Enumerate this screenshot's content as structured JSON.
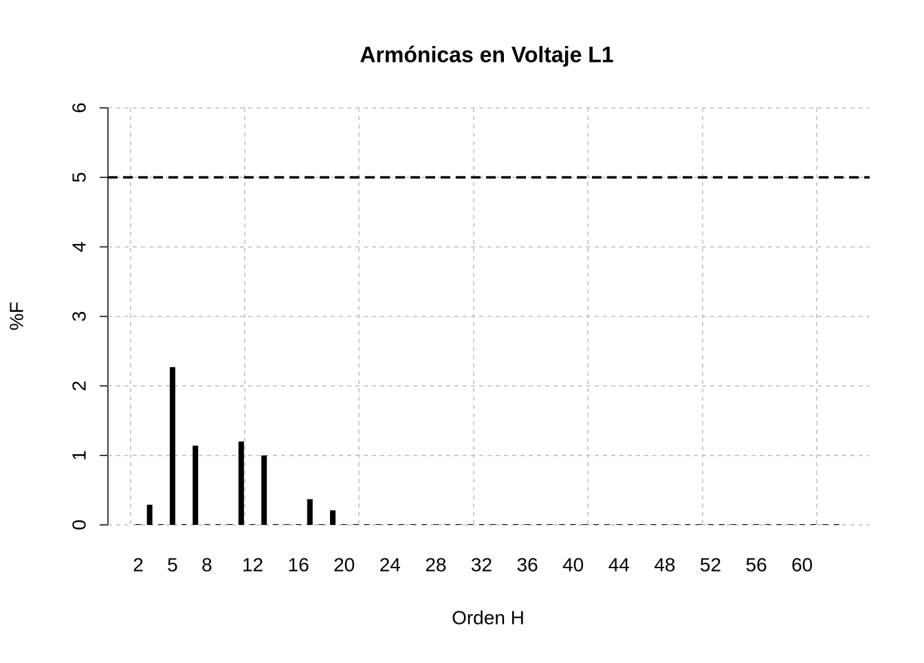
{
  "chart_data": {
    "type": "bar",
    "title": "Armónicas en Voltaje L1",
    "x_label": "Orden H",
    "y_label": "%F",
    "categories": [
      "2",
      null,
      null,
      "5",
      null,
      null,
      "8",
      null,
      null,
      null,
      "12",
      null,
      null,
      null,
      "16",
      null,
      null,
      null,
      "20",
      null,
      null,
      null,
      "24",
      null,
      null,
      null,
      "28",
      null,
      null,
      null,
      "32",
      null,
      null,
      null,
      "36",
      null,
      null,
      null,
      "40",
      null,
      null,
      null,
      "44",
      null,
      null,
      null,
      "48",
      null,
      null,
      null,
      "52",
      null,
      null,
      null,
      "56",
      null,
      null,
      null,
      "60",
      null,
      null,
      null
    ],
    "values": [
      0.01,
      0.29,
      0.01,
      2.27,
      0.01,
      1.14,
      0.01,
      0.01,
      0.01,
      1.2,
      0.01,
      1.0,
      0.01,
      0.01,
      0.01,
      0.37,
      0.01,
      0.21,
      0.01,
      0.01,
      0.01,
      0.01,
      0.01,
      0.01,
      0.01,
      0.01,
      0.01,
      0.01,
      0.01,
      0.01,
      0.01,
      0.01,
      0.01,
      0.01,
      0.01,
      0.01,
      0.01,
      0.01,
      0.01,
      0.01,
      0.01,
      0.01,
      0.01,
      0.01,
      0.01,
      0.01,
      0.01,
      0.01,
      0.01,
      0.01,
      0.01,
      0.01,
      0.01,
      0.01,
      0.01,
      0.01,
      0.01,
      0.01,
      0.01,
      0.01,
      0.01,
      0.01
    ],
    "color": "#000000",
    "threshold": 5,
    "ylim": [
      0,
      6
    ],
    "yticks": [
      0,
      1,
      2,
      3,
      4,
      5,
      6
    ],
    "grid": true
  }
}
